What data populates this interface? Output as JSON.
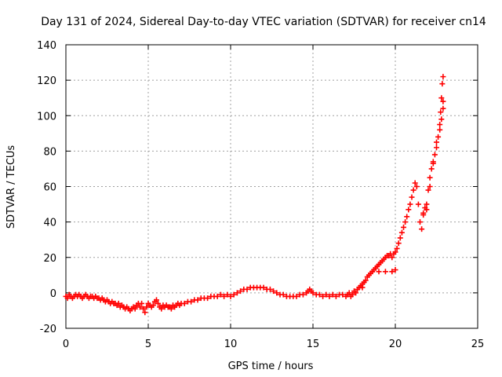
{
  "chart_data": {
    "type": "scatter",
    "title": "Day 131 of 2024, Sidereal Day-to-day VTEC variation (SDTVAR) for receiver cn14",
    "xlabel": "GPS time / hours",
    "ylabel": "SDTVAR / TECUs",
    "xlim": [
      0,
      25
    ],
    "ylim": [
      -20,
      140
    ],
    "xticks": [
      "0",
      "5",
      "10",
      "15",
      "20",
      "25"
    ],
    "yticks": [
      "-20",
      "0",
      "20",
      "40",
      "60",
      "80",
      "100",
      "120",
      "140"
    ],
    "grid": true,
    "marker": "plus",
    "series": [
      {
        "name": "SDTVAR",
        "color": "#ff0000",
        "points": [
          [
            0.0,
            -2
          ],
          [
            0.1,
            -3
          ],
          [
            0.2,
            -1
          ],
          [
            0.3,
            -2
          ],
          [
            0.4,
            -3
          ],
          [
            0.5,
            -2
          ],
          [
            0.6,
            -1
          ],
          [
            0.7,
            -2
          ],
          [
            0.8,
            -1
          ],
          [
            0.9,
            -2
          ],
          [
            1.0,
            -3
          ],
          [
            1.1,
            -2
          ],
          [
            1.2,
            -1
          ],
          [
            1.3,
            -2
          ],
          [
            1.4,
            -3
          ],
          [
            1.5,
            -2
          ],
          [
            1.6,
            -2
          ],
          [
            1.7,
            -3
          ],
          [
            1.8,
            -2
          ],
          [
            1.9,
            -3
          ],
          [
            2.0,
            -3
          ],
          [
            2.1,
            -4
          ],
          [
            2.2,
            -3
          ],
          [
            2.3,
            -4
          ],
          [
            2.4,
            -5
          ],
          [
            2.5,
            -4
          ],
          [
            2.6,
            -5
          ],
          [
            2.7,
            -6
          ],
          [
            2.8,
            -5
          ],
          [
            2.9,
            -6
          ],
          [
            3.0,
            -6
          ],
          [
            3.1,
            -7
          ],
          [
            3.2,
            -6
          ],
          [
            3.3,
            -8
          ],
          [
            3.4,
            -7
          ],
          [
            3.5,
            -8
          ],
          [
            3.6,
            -9
          ],
          [
            3.7,
            -8
          ],
          [
            3.8,
            -9
          ],
          [
            3.9,
            -10
          ],
          [
            4.0,
            -9
          ],
          [
            4.1,
            -8
          ],
          [
            4.2,
            -9
          ],
          [
            4.3,
            -7
          ],
          [
            4.4,
            -6
          ],
          [
            4.5,
            -8
          ],
          [
            4.6,
            -6
          ],
          [
            4.7,
            -9
          ],
          [
            4.8,
            -11
          ],
          [
            4.9,
            -8
          ],
          [
            5.0,
            -6
          ],
          [
            5.1,
            -7
          ],
          [
            5.2,
            -8
          ],
          [
            5.3,
            -7
          ],
          [
            5.4,
            -5
          ],
          [
            5.5,
            -4
          ],
          [
            5.6,
            -6
          ],
          [
            5.7,
            -8
          ],
          [
            5.8,
            -9
          ],
          [
            5.9,
            -7
          ],
          [
            6.0,
            -8
          ],
          [
            6.1,
            -7
          ],
          [
            6.2,
            -8
          ],
          [
            6.3,
            -8
          ],
          [
            6.4,
            -9
          ],
          [
            6.5,
            -7
          ],
          [
            6.6,
            -8
          ],
          [
            6.7,
            -7
          ],
          [
            6.8,
            -6
          ],
          [
            6.9,
            -7
          ],
          [
            7.0,
            -6
          ],
          [
            7.2,
            -6
          ],
          [
            7.4,
            -5
          ],
          [
            7.6,
            -5
          ],
          [
            7.8,
            -4
          ],
          [
            8.0,
            -4
          ],
          [
            8.2,
            -3
          ],
          [
            8.4,
            -3
          ],
          [
            8.6,
            -3
          ],
          [
            8.8,
            -2
          ],
          [
            9.0,
            -2
          ],
          [
            9.2,
            -2
          ],
          [
            9.4,
            -1
          ],
          [
            9.6,
            -2
          ],
          [
            9.8,
            -1
          ],
          [
            10.0,
            -2
          ],
          [
            10.2,
            -1
          ],
          [
            10.4,
            0
          ],
          [
            10.6,
            1
          ],
          [
            10.8,
            2
          ],
          [
            11.0,
            2
          ],
          [
            11.2,
            3
          ],
          [
            11.4,
            3
          ],
          [
            11.6,
            3
          ],
          [
            11.8,
            3
          ],
          [
            12.0,
            3
          ],
          [
            12.2,
            2
          ],
          [
            12.4,
            2
          ],
          [
            12.6,
            1
          ],
          [
            12.8,
            0
          ],
          [
            13.0,
            -1
          ],
          [
            13.2,
            -1
          ],
          [
            13.4,
            -2
          ],
          [
            13.6,
            -2
          ],
          [
            13.8,
            -2
          ],
          [
            14.0,
            -2
          ],
          [
            14.2,
            -1
          ],
          [
            14.4,
            -1
          ],
          [
            14.6,
            0
          ],
          [
            14.7,
            1
          ],
          [
            14.8,
            2
          ],
          [
            14.9,
            1
          ],
          [
            15.0,
            0
          ],
          [
            15.2,
            -1
          ],
          [
            15.4,
            -1
          ],
          [
            15.6,
            -2
          ],
          [
            15.8,
            -1
          ],
          [
            16.0,
            -2
          ],
          [
            16.2,
            -1
          ],
          [
            16.4,
            -2
          ],
          [
            16.6,
            -1
          ],
          [
            16.8,
            -1
          ],
          [
            17.0,
            -2
          ],
          [
            17.1,
            -1
          ],
          [
            17.2,
            0
          ],
          [
            17.3,
            -2
          ],
          [
            17.4,
            -1
          ],
          [
            17.5,
            1
          ],
          [
            17.6,
            0
          ],
          [
            17.7,
            2
          ],
          [
            17.8,
            3
          ],
          [
            17.9,
            4
          ],
          [
            18.0,
            5
          ],
          [
            18.1,
            6
          ],
          [
            18.2,
            7
          ],
          [
            18.3,
            9
          ],
          [
            18.4,
            10
          ],
          [
            18.5,
            11
          ],
          [
            18.6,
            12
          ],
          [
            18.7,
            13
          ],
          [
            18.8,
            14
          ],
          [
            18.9,
            15
          ],
          [
            19.0,
            16
          ],
          [
            19.1,
            17
          ],
          [
            19.2,
            18
          ],
          [
            19.3,
            19
          ],
          [
            19.4,
            20
          ],
          [
            19.5,
            21
          ],
          [
            19.6,
            21
          ],
          [
            19.7,
            22
          ],
          [
            19.8,
            20
          ],
          [
            19.9,
            22
          ],
          [
            20.0,
            23
          ],
          [
            20.1,
            25
          ],
          [
            20.2,
            28
          ],
          [
            20.3,
            31
          ],
          [
            20.4,
            34
          ],
          [
            20.5,
            37
          ],
          [
            20.6,
            40
          ],
          [
            20.7,
            43
          ],
          [
            20.8,
            47
          ],
          [
            20.9,
            50
          ],
          [
            21.0,
            54
          ],
          [
            21.1,
            58
          ],
          [
            21.2,
            62
          ],
          [
            21.3,
            60
          ],
          [
            21.4,
            50
          ],
          [
            21.5,
            40
          ],
          [
            21.6,
            36
          ],
          [
            21.7,
            45
          ],
          [
            21.8,
            48
          ],
          [
            21.9,
            50
          ],
          [
            22.0,
            58
          ],
          [
            22.1,
            65
          ],
          [
            22.2,
            70
          ],
          [
            22.3,
            74
          ],
          [
            22.4,
            78
          ],
          [
            22.5,
            82
          ],
          [
            22.6,
            88
          ],
          [
            22.7,
            95
          ],
          [
            22.75,
            102
          ],
          [
            22.8,
            110
          ],
          [
            22.85,
            118
          ],
          [
            22.9,
            122
          ],
          [
            22.9,
            108
          ],
          [
            19.0,
            12
          ],
          [
            19.4,
            12
          ],
          [
            19.8,
            12
          ],
          [
            20.0,
            13
          ],
          [
            18.0,
            3
          ],
          [
            21.7,
            44
          ],
          [
            21.9,
            47
          ],
          [
            22.1,
            60
          ],
          [
            22.3,
            73
          ],
          [
            22.5,
            85
          ],
          [
            22.7,
            92
          ],
          [
            22.8,
            98
          ],
          [
            22.9,
            104
          ]
        ]
      }
    ]
  }
}
